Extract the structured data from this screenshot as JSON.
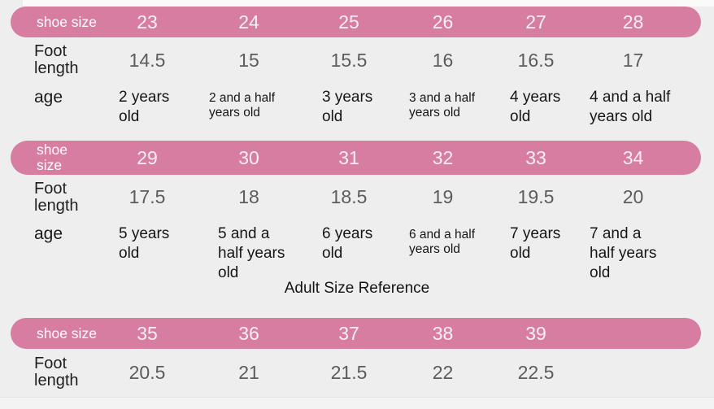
{
  "colors": {
    "accent_pink": "#d77da2",
    "background": "#efeeee",
    "header_text": "#ffffff",
    "foot_number_gray": "#5c5c5c",
    "body_text": "#1a1a1a"
  },
  "chart_data": [
    {
      "type": "table",
      "header": {
        "label": "shoe size",
        "values": [
          "23",
          "24",
          "25",
          "26",
          "27",
          "28"
        ]
      },
      "rows": [
        {
          "label": "Foot length",
          "values": [
            "14.5",
            "15",
            "15.5",
            "16",
            "16.5",
            "17"
          ]
        },
        {
          "label": "age",
          "values": [
            "2 years old",
            "2 and a half years old",
            "3 years old",
            "3 and a half years old",
            "4 years old",
            "4 and a half years old"
          ]
        }
      ]
    },
    {
      "type": "table",
      "header": {
        "label": "shoe size",
        "values": [
          "29",
          "30",
          "31",
          "32",
          "33",
          "34"
        ]
      },
      "rows": [
        {
          "label": "Foot length",
          "values": [
            "17.5",
            "18",
            "18.5",
            "19",
            "19.5",
            "20"
          ]
        },
        {
          "label": "age",
          "values": [
            "5 years old",
            "5 and a half years old",
            "6 years old",
            "6 and a half years old",
            "7 years old",
            "7 and a half years old"
          ]
        }
      ]
    },
    {
      "type": "table",
      "title": "Adult Size Reference",
      "header": {
        "label": "shoe size",
        "values": [
          "35",
          "36",
          "37",
          "38",
          "39"
        ]
      },
      "rows": [
        {
          "label": "Foot length",
          "values": [
            "20.5",
            "21",
            "21.5",
            "22",
            "22.5"
          ]
        }
      ]
    }
  ]
}
